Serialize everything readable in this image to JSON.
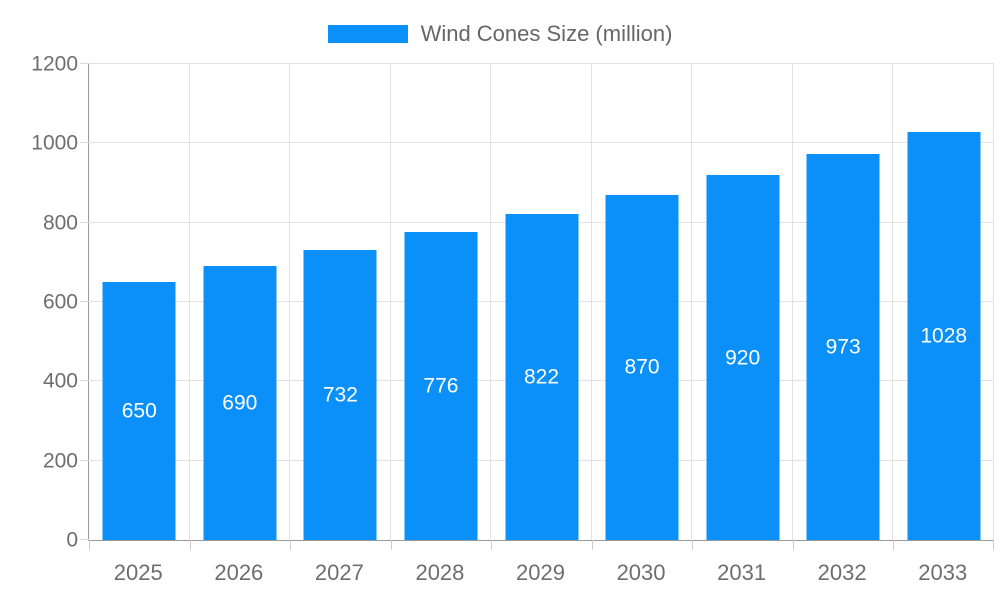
{
  "colors": {
    "bar": "#0a90f8",
    "grid": "#e2e2e2",
    "axis": "#9a9a9a",
    "tick_label": "#6e6e6e",
    "value_label": "#ffffff",
    "legend_text": "#666666"
  },
  "legend": {
    "label": "Wind Cones Size (million)"
  },
  "chart_data": {
    "type": "bar",
    "title": "Wind Cones Size (million)",
    "categories": [
      "2025",
      "2026",
      "2027",
      "2028",
      "2029",
      "2030",
      "2031",
      "2032",
      "2033"
    ],
    "values": [
      650,
      690,
      732,
      776,
      822,
      870,
      920,
      973,
      1028
    ],
    "xlabel": "",
    "ylabel": "",
    "ylim": [
      0,
      1200
    ],
    "ytick_step": 200,
    "yticks": [
      0,
      200,
      400,
      600,
      800,
      1000,
      1200
    ],
    "grid": true,
    "legend_position": "top",
    "value_labels": "inside-middle"
  }
}
